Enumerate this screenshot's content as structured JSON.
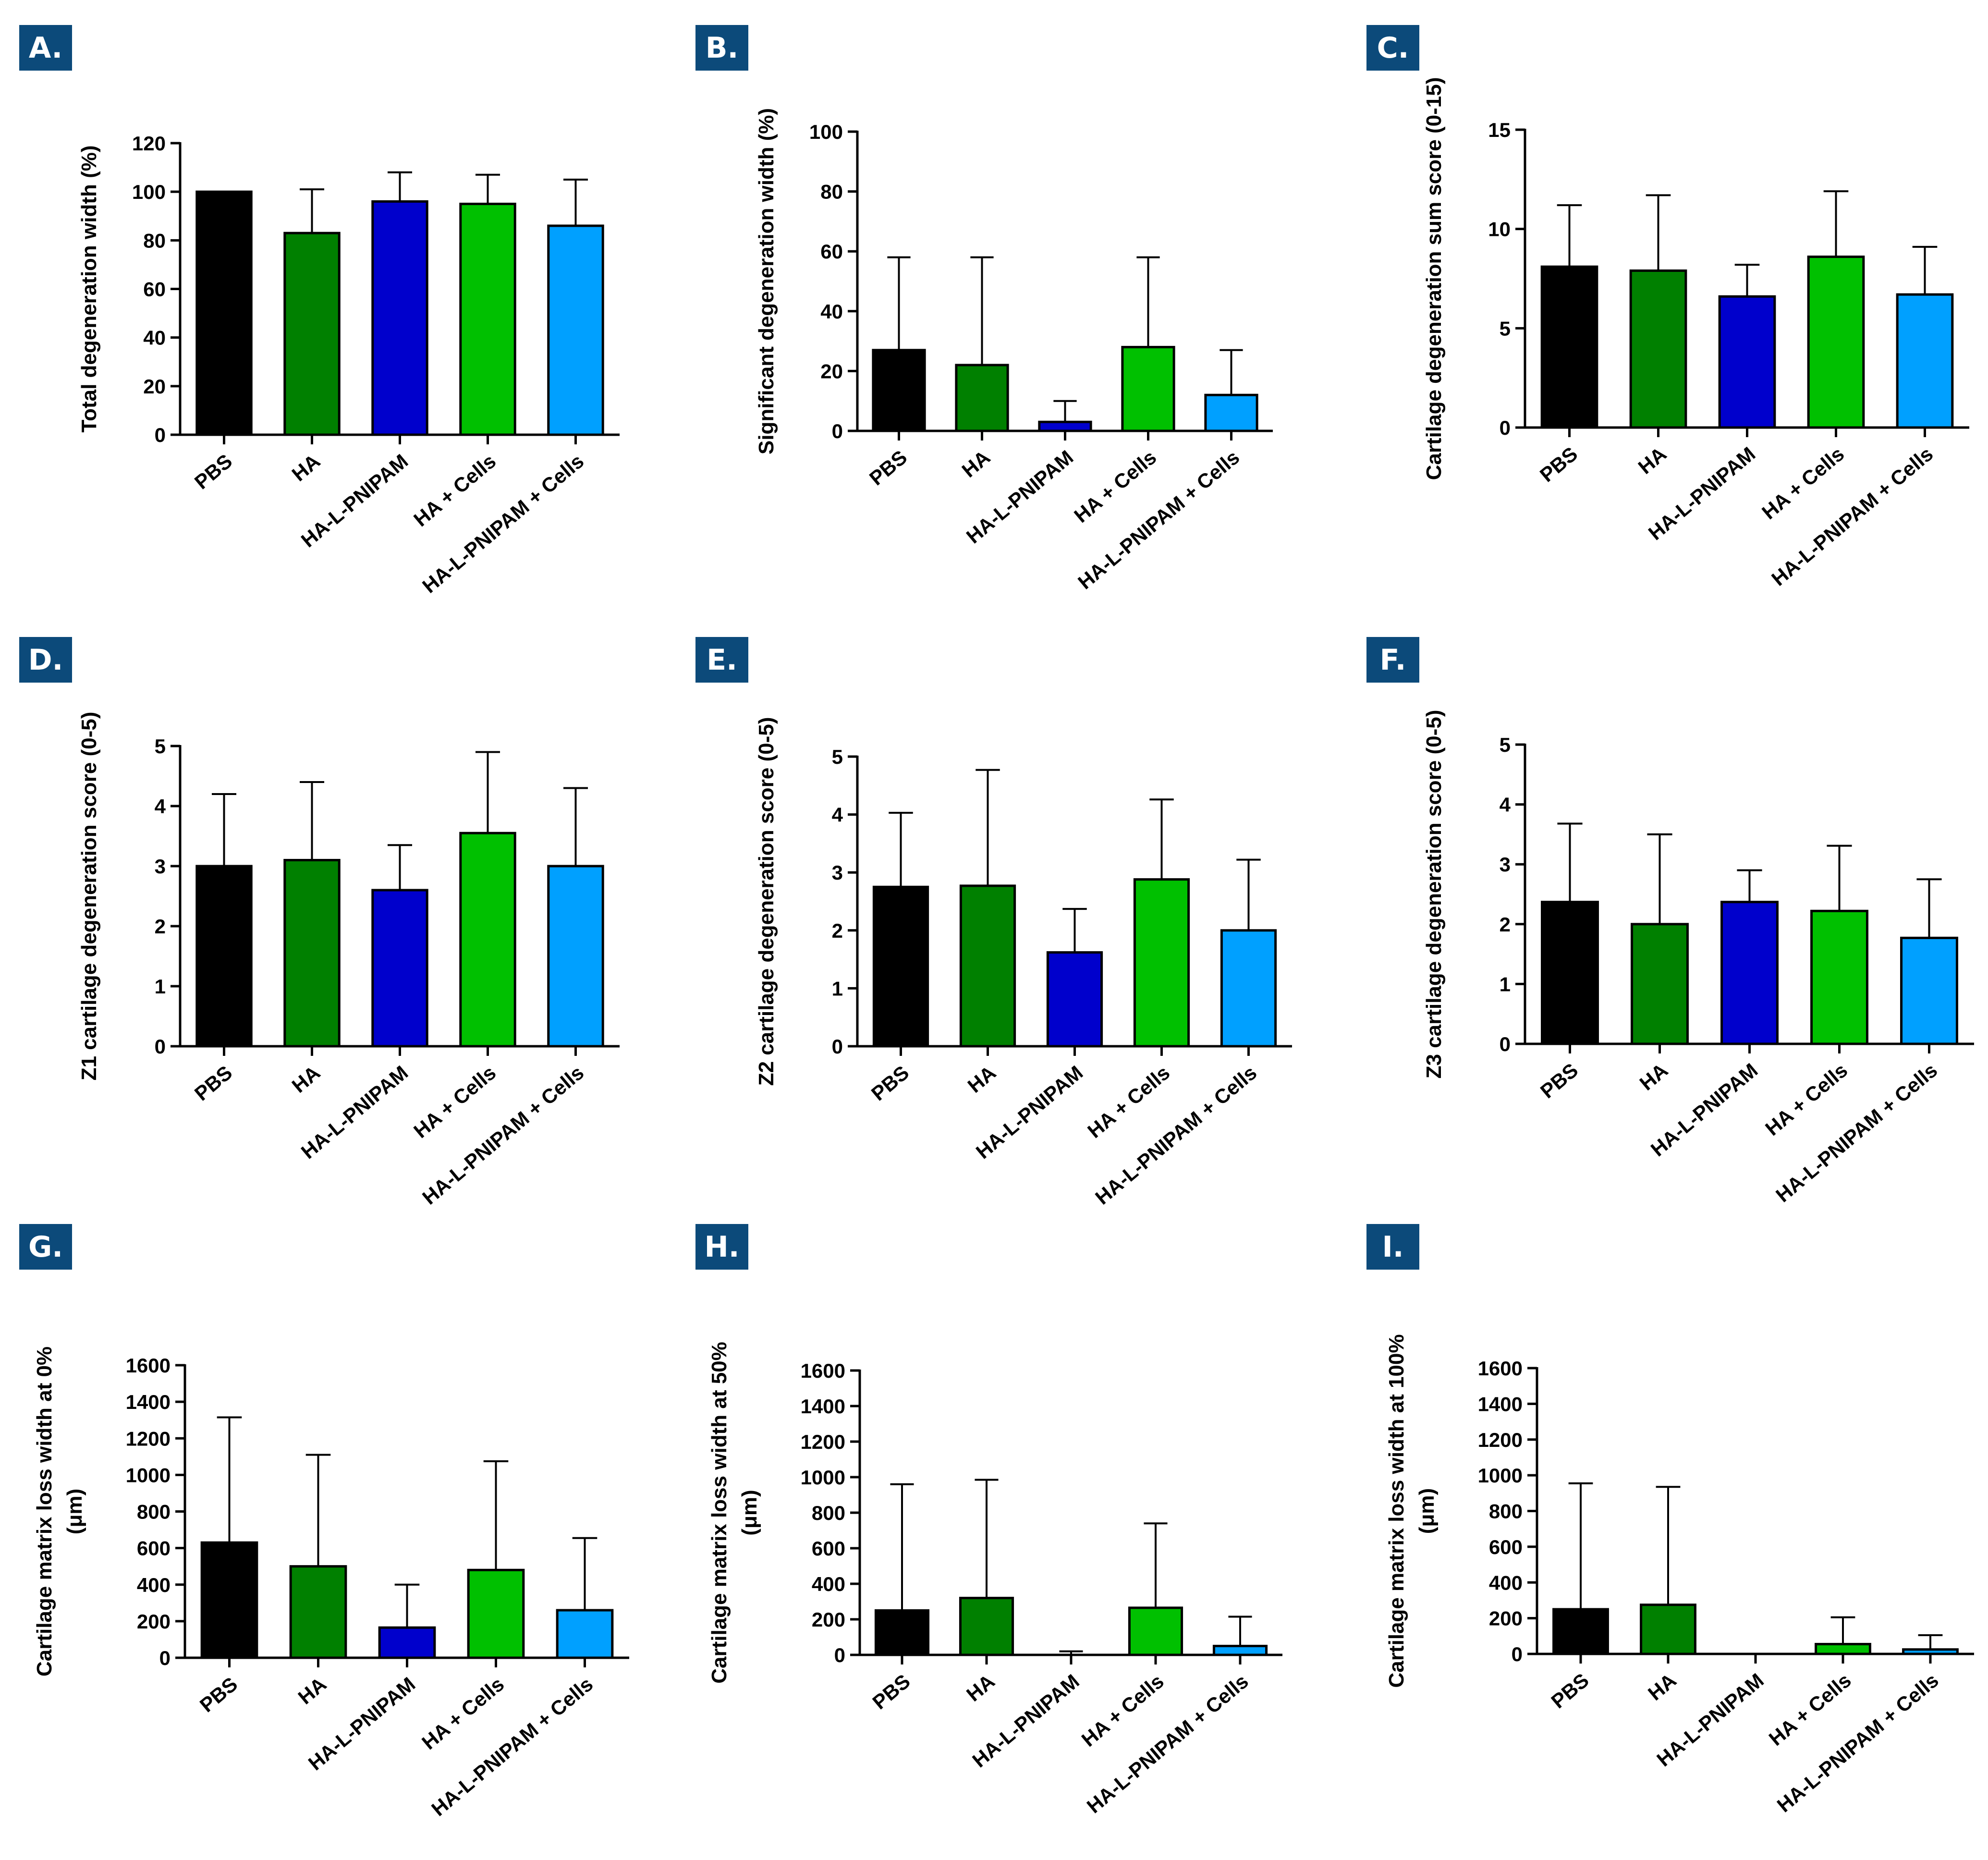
{
  "colors": {
    "panel_label_bg": "#0c4a7a",
    "bars": [
      "#000000",
      "#008000",
      "#0000cc",
      "#00c000",
      "#00a0ff"
    ]
  },
  "categories": [
    "PBS",
    "HA",
    "HA-L-PNIPAM",
    "HA + Cells",
    "HA-L-PNIPAM + Cells"
  ],
  "chart_data": [
    {
      "type": "bar",
      "label": "A.",
      "ylabel": "Total degeneration width (%)",
      "ylim": [
        0,
        120
      ],
      "yticks": [
        0,
        20,
        40,
        60,
        80,
        100,
        120
      ],
      "categories": [
        "PBS",
        "HA",
        "HA-L-PNIPAM",
        "HA + Cells",
        "HA-L-PNIPAM + Cells"
      ],
      "values": [
        100,
        83,
        96,
        95,
        86
      ],
      "errors": [
        0,
        18,
        12,
        12,
        19
      ]
    },
    {
      "type": "bar",
      "label": "B.",
      "ylabel": "Significant degeneration width (%)",
      "ylim": [
        0,
        100
      ],
      "yticks": [
        0,
        20,
        40,
        60,
        80,
        100
      ],
      "categories": [
        "PBS",
        "HA",
        "HA-L-PNIPAM",
        "HA + Cells",
        "HA-L-PNIPAM + Cells"
      ],
      "values": [
        27,
        22,
        3,
        28,
        12
      ],
      "errors": [
        31,
        36,
        7,
        30,
        15
      ]
    },
    {
      "type": "bar",
      "label": "C.",
      "ylabel": "Cartilage degeneration sum score (0-15)",
      "ylim": [
        0,
        15
      ],
      "yticks": [
        0,
        5,
        10,
        15
      ],
      "categories": [
        "PBS",
        "HA",
        "HA-L-PNIPAM",
        "HA + Cells",
        "HA-L-PNIPAM + Cells"
      ],
      "values": [
        8.1,
        7.9,
        6.6,
        8.6,
        6.7
      ],
      "errors": [
        3.1,
        3.8,
        1.6,
        3.3,
        2.4
      ]
    },
    {
      "type": "bar",
      "label": "D.",
      "ylabel": "Z1 cartilage degeneration score (0-5)",
      "ylim": [
        0,
        5
      ],
      "yticks": [
        0,
        1,
        2,
        3,
        4,
        5
      ],
      "categories": [
        "PBS",
        "HA",
        "HA-L-PNIPAM",
        "HA + Cells",
        "HA-L-PNIPAM + Cells"
      ],
      "values": [
        3.0,
        3.1,
        2.6,
        3.55,
        3.0
      ],
      "errors": [
        1.2,
        1.3,
        0.75,
        1.35,
        1.3
      ]
    },
    {
      "type": "bar",
      "label": "E.",
      "ylabel": "Z2 cartilage degeneration score (0-5)",
      "ylim": [
        0,
        5
      ],
      "yticks": [
        0,
        1,
        2,
        3,
        4,
        5
      ],
      "categories": [
        "PBS",
        "HA",
        "HA-L-PNIPAM",
        "HA + Cells",
        "HA-L-PNIPAM + Cells"
      ],
      "values": [
        2.75,
        2.77,
        1.62,
        2.88,
        2.0
      ],
      "errors": [
        1.28,
        2.0,
        0.75,
        1.38,
        1.22
      ]
    },
    {
      "type": "bar",
      "label": "F.",
      "ylabel": "Z3 cartilage degeneration score (0-5)",
      "ylim": [
        0,
        5
      ],
      "yticks": [
        0,
        1,
        2,
        3,
        4,
        5
      ],
      "categories": [
        "PBS",
        "HA",
        "HA-L-PNIPAM",
        "HA + Cells",
        "HA-L-PNIPAM + Cells"
      ],
      "values": [
        2.37,
        2.0,
        2.37,
        2.22,
        1.77
      ],
      "errors": [
        1.31,
        1.5,
        0.53,
        1.09,
        0.98
      ]
    },
    {
      "type": "bar",
      "label": "G.",
      "ylabel": "Cartilage matrix loss width at 0%",
      "yunit": "(μm)",
      "ylim": [
        0,
        1600
      ],
      "yticks": [
        0,
        200,
        400,
        600,
        800,
        1000,
        1200,
        1400,
        1600
      ],
      "categories": [
        "PBS",
        "HA",
        "HA-L-PNIPAM",
        "HA + Cells",
        "HA-L-PNIPAM + Cells"
      ],
      "values": [
        630,
        500,
        165,
        480,
        260
      ],
      "errors": [
        685,
        610,
        235,
        595,
        395
      ]
    },
    {
      "type": "bar",
      "label": "H.",
      "ylabel": "Cartilage matrix loss width at 50%",
      "yunit": "(μm)",
      "ylim": [
        0,
        1600
      ],
      "yticks": [
        0,
        200,
        400,
        600,
        800,
        1000,
        1200,
        1400,
        1600
      ],
      "categories": [
        "PBS",
        "HA",
        "HA-L-PNIPAM",
        "HA + Cells",
        "HA-L-PNIPAM + Cells"
      ],
      "values": [
        250,
        320,
        0,
        265,
        50
      ],
      "errors": [
        710,
        665,
        20,
        475,
        165
      ]
    },
    {
      "type": "bar",
      "label": "I.",
      "ylabel": "Cartilage matrix loss width at 100%",
      "yunit": "(μm)",
      "ylim": [
        0,
        1600
      ],
      "yticks": [
        0,
        200,
        400,
        600,
        800,
        1000,
        1200,
        1400,
        1600
      ],
      "categories": [
        "PBS",
        "HA",
        "HA-L-PNIPAM",
        "HA + Cells",
        "HA-L-PNIPAM + Cells"
      ],
      "values": [
        250,
        275,
        0,
        55,
        25
      ],
      "errors": [
        705,
        660,
        0,
        150,
        80
      ]
    }
  ]
}
